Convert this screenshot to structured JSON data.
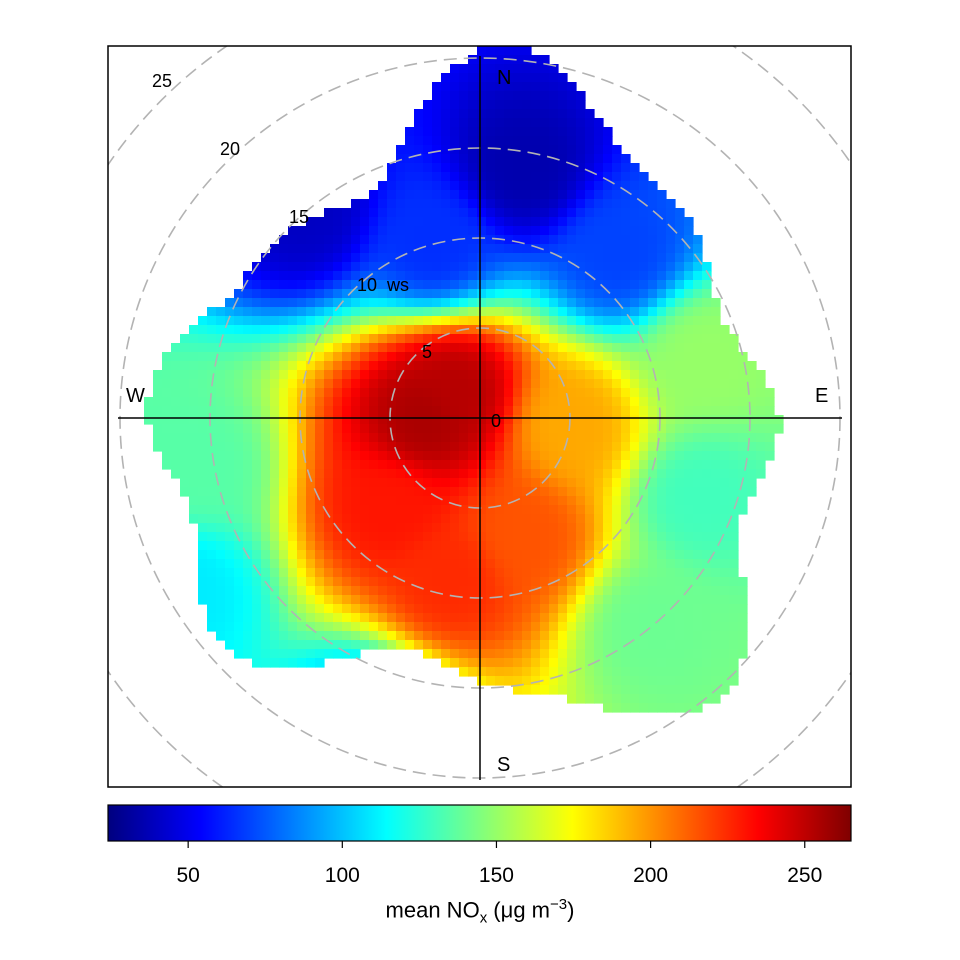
{
  "chart_data": {
    "type": "heatmap",
    "subtype": "polar bivariate (wind direction / wind speed)",
    "pollutant_label": {
      "prefix": "mean NO",
      "subscript": "x",
      "unit_open": " (",
      "mu": "μ",
      "unit_mid": "g m",
      "superscript": "−3",
      "unit_close": ")"
    },
    "compass": {
      "north": "N",
      "south": "S",
      "east": "E",
      "west": "W"
    },
    "ws_unit_label": "ws",
    "ws_rings": [
      5,
      10,
      15,
      20,
      25
    ],
    "ws_ring_labels": [
      "5",
      "10",
      "15",
      "20",
      "25"
    ],
    "origin_label": "0",
    "ws_range": [
      0,
      25
    ],
    "colorbar": {
      "min": 24,
      "max": 265,
      "ticks": [
        50,
        100,
        150,
        200,
        250
      ],
      "tick_labels": [
        "50",
        "100",
        "150",
        "200",
        "250"
      ],
      "palette": [
        "#00007F",
        "#0000FF",
        "#007FFF",
        "#00FFFF",
        "#7FFF7F",
        "#FFFF00",
        "#FF7F00",
        "#FF0000",
        "#7F0000"
      ]
    },
    "surface_peaks": [
      {
        "direction_deg": 270,
        "ws": 3,
        "value": 255
      },
      {
        "direction_deg": 315,
        "ws": 2,
        "value": 252
      },
      {
        "direction_deg": 225,
        "ws": 7,
        "value": 230
      },
      {
        "direction_deg": 190,
        "ws": 9,
        "value": 225
      },
      {
        "direction_deg": 160,
        "ws": 7,
        "value": 215
      },
      {
        "direction_deg": 95,
        "ws": 5,
        "value": 195
      },
      {
        "direction_deg": 260,
        "ws": 16,
        "value": 135
      },
      {
        "direction_deg": 240,
        "ws": 19,
        "value": 110
      },
      {
        "direction_deg": 75,
        "ws": 13,
        "value": 150
      },
      {
        "direction_deg": 110,
        "ws": 13,
        "value": 130
      },
      {
        "direction_deg": 140,
        "ws": 15,
        "value": 140
      },
      {
        "direction_deg": 200,
        "ws": 18,
        "value": 95
      },
      {
        "direction_deg": 345,
        "ws": 10,
        "value": 65
      },
      {
        "direction_deg": 320,
        "ws": 15,
        "value": 40
      },
      {
        "direction_deg": 10,
        "ws": 14,
        "value": 35
      },
      {
        "direction_deg": 40,
        "ws": 12,
        "value": 70
      }
    ]
  }
}
